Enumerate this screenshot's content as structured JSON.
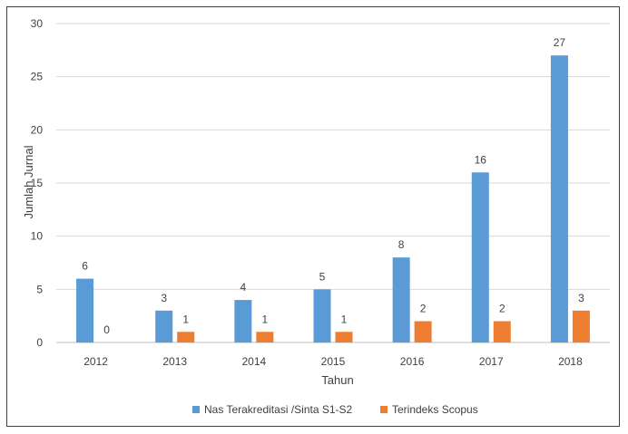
{
  "chart_data": {
    "type": "bar",
    "categories": [
      "2012",
      "2013",
      "2014",
      "2015",
      "2016",
      "2017",
      "2018"
    ],
    "series": [
      {
        "name": "Nas Terakreditasi /Sinta S1-S2",
        "values": [
          6,
          3,
          4,
          5,
          8,
          16,
          27
        ],
        "color": "#5B9BD5"
      },
      {
        "name": "Terindeks Scopus",
        "values": [
          0,
          1,
          1,
          1,
          2,
          2,
          3
        ],
        "color": "#ED7D31"
      }
    ],
    "xlabel": "Tahun",
    "ylabel": "Jumlah Jurnal",
    "ylim": [
      0,
      30
    ],
    "yticks": [
      0,
      5,
      10,
      15,
      20,
      25,
      30
    ],
    "grid": true,
    "legend_position": "bottom",
    "data_labels": true
  }
}
